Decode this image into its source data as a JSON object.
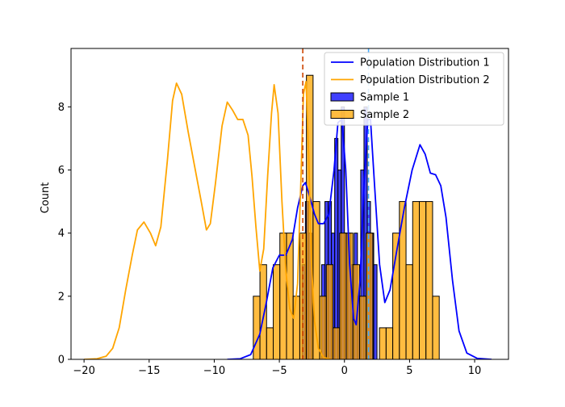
{
  "chart_data": {
    "type": "histogram",
    "title": "",
    "xlabel": "",
    "ylabel": "Count",
    "xlim": [
      -21.0,
      12.6
    ],
    "ylim": [
      0,
      9.85
    ],
    "x_ticks": [
      -20,
      -15,
      -10,
      -5,
      0,
      5,
      10
    ],
    "y_ticks": [
      0,
      2,
      4,
      6,
      8
    ],
    "x_tick_labels": [
      "−20",
      "−15",
      "−10",
      "−5",
      "0",
      "5",
      "10"
    ],
    "y_tick_labels": [
      "0",
      "2",
      "4",
      "6",
      "8"
    ],
    "legend_position": "top-right",
    "legend": [
      {
        "label": "Population Distribution 1",
        "kind": "line",
        "color": "#0000ff"
      },
      {
        "label": "Population Distribution 2",
        "kind": "line",
        "color": "#ffa500"
      },
      {
        "label": "Sample 1",
        "kind": "patch",
        "color": "#0000ff"
      },
      {
        "label": "Sample 2",
        "kind": "patch",
        "color": "#ffa500"
      }
    ],
    "series": [
      {
        "name": "Sample 1",
        "kind": "histogram",
        "color": "#0000ff",
        "bin_width": 0.25,
        "bins": [
          {
            "x": -3.25,
            "count": 3
          },
          {
            "x": -3.0,
            "count": 5
          },
          {
            "x": -2.75,
            "count": 4
          },
          {
            "x": -1.75,
            "count": 3
          },
          {
            "x": -1.5,
            "count": 5
          },
          {
            "x": -1.25,
            "count": 5
          },
          {
            "x": -1.0,
            "count": 4
          },
          {
            "x": -0.75,
            "count": 7
          },
          {
            "x": -0.5,
            "count": 6
          },
          {
            "x": -0.25,
            "count": 8
          },
          {
            "x": 0.0,
            "count": 4
          },
          {
            "x": 0.25,
            "count": 4
          },
          {
            "x": 0.5,
            "count": 3
          },
          {
            "x": 0.75,
            "count": 4
          },
          {
            "x": 1.0,
            "count": 2
          },
          {
            "x": 1.25,
            "count": 6
          },
          {
            "x": 1.5,
            "count": 8
          },
          {
            "x": 1.75,
            "count": 5
          },
          {
            "x": 2.0,
            "count": 4
          },
          {
            "x": 2.25,
            "count": 3
          }
        ]
      },
      {
        "name": "Sample 2",
        "kind": "histogram",
        "color": "#ffa500",
        "bin_width": 0.51,
        "bins": [
          {
            "x": -7.0,
            "count": 2
          },
          {
            "x": -6.49,
            "count": 3
          },
          {
            "x": -5.98,
            "count": 1
          },
          {
            "x": -5.47,
            "count": 3
          },
          {
            "x": -4.96,
            "count": 4
          },
          {
            "x": -4.45,
            "count": 4
          },
          {
            "x": -3.94,
            "count": 2
          },
          {
            "x": -3.43,
            "count": 4
          },
          {
            "x": -2.92,
            "count": 9
          },
          {
            "x": -2.41,
            "count": 5
          },
          {
            "x": -1.9,
            "count": 2
          },
          {
            "x": -1.39,
            "count": 3
          },
          {
            "x": -0.88,
            "count": 1
          },
          {
            "x": -0.37,
            "count": 4
          },
          {
            "x": 0.14,
            "count": 4
          },
          {
            "x": 0.65,
            "count": 3
          },
          {
            "x": 1.16,
            "count": 2
          },
          {
            "x": 1.67,
            "count": 4
          },
          {
            "x": 2.18,
            "count": 0
          },
          {
            "x": 2.69,
            "count": 1
          },
          {
            "x": 3.2,
            "count": 1
          },
          {
            "x": 3.71,
            "count": 4
          },
          {
            "x": 4.22,
            "count": 5
          },
          {
            "x": 4.73,
            "count": 3
          },
          {
            "x": 5.24,
            "count": 5
          },
          {
            "x": 5.75,
            "count": 5
          },
          {
            "x": 6.26,
            "count": 5
          },
          {
            "x": 6.77,
            "count": 2
          }
        ]
      },
      {
        "name": "Population Distribution 1",
        "kind": "line",
        "color": "#0000ff",
        "points": [
          [
            -9.0,
            0.0
          ],
          [
            -8.0,
            0.02
          ],
          [
            -7.2,
            0.15
          ],
          [
            -6.5,
            0.8
          ],
          [
            -6.0,
            1.8
          ],
          [
            -5.5,
            2.9
          ],
          [
            -5.0,
            3.3
          ],
          [
            -4.5,
            3.3
          ],
          [
            -4.0,
            3.8
          ],
          [
            -3.6,
            4.8
          ],
          [
            -3.2,
            5.5
          ],
          [
            -3.0,
            5.6
          ],
          [
            -2.7,
            5.2
          ],
          [
            -2.3,
            4.6
          ],
          [
            -2.0,
            4.3
          ],
          [
            -1.6,
            4.3
          ],
          [
            -1.2,
            4.6
          ],
          [
            -0.8,
            6.0
          ],
          [
            -0.5,
            7.5
          ],
          [
            -0.2,
            7.6
          ],
          [
            0.1,
            6.0
          ],
          [
            0.4,
            3.0
          ],
          [
            0.7,
            1.3
          ],
          [
            0.9,
            1.1
          ],
          [
            1.2,
            2.5
          ],
          [
            1.5,
            5.5
          ],
          [
            1.8,
            7.6
          ],
          [
            2.0,
            7.6
          ],
          [
            2.3,
            5.6
          ],
          [
            2.7,
            3.0
          ],
          [
            3.1,
            1.8
          ],
          [
            3.5,
            2.2
          ],
          [
            4.0,
            3.4
          ],
          [
            4.6,
            4.8
          ],
          [
            5.2,
            6.0
          ],
          [
            5.8,
            6.8
          ],
          [
            6.2,
            6.5
          ],
          [
            6.6,
            5.9
          ],
          [
            7.0,
            5.85
          ],
          [
            7.4,
            5.5
          ],
          [
            7.8,
            4.5
          ],
          [
            8.3,
            2.5
          ],
          [
            8.8,
            0.9
          ],
          [
            9.4,
            0.2
          ],
          [
            10.2,
            0.03
          ],
          [
            11.3,
            0.0
          ]
        ]
      },
      {
        "name": "Population Distribution 2",
        "kind": "line",
        "color": "#ffa500",
        "points": [
          [
            -20.0,
            0.0
          ],
          [
            -19.0,
            0.02
          ],
          [
            -18.3,
            0.1
          ],
          [
            -17.8,
            0.35
          ],
          [
            -17.3,
            1.0
          ],
          [
            -16.8,
            2.2
          ],
          [
            -16.3,
            3.3
          ],
          [
            -15.9,
            4.1
          ],
          [
            -15.4,
            4.35
          ],
          [
            -14.9,
            4.0
          ],
          [
            -14.5,
            3.6
          ],
          [
            -14.1,
            4.2
          ],
          [
            -13.6,
            6.3
          ],
          [
            -13.2,
            8.2
          ],
          [
            -12.9,
            8.75
          ],
          [
            -12.5,
            8.4
          ],
          [
            -12.0,
            7.2
          ],
          [
            -11.5,
            6.1
          ],
          [
            -11.0,
            5.0
          ],
          [
            -10.6,
            4.1
          ],
          [
            -10.3,
            4.3
          ],
          [
            -9.9,
            5.6
          ],
          [
            -9.4,
            7.4
          ],
          [
            -9.0,
            8.15
          ],
          [
            -8.6,
            7.9
          ],
          [
            -8.2,
            7.6
          ],
          [
            -7.8,
            7.6
          ],
          [
            -7.4,
            7.1
          ],
          [
            -7.1,
            5.8
          ],
          [
            -6.8,
            4.2
          ],
          [
            -6.5,
            2.8
          ],
          [
            -6.2,
            3.5
          ],
          [
            -5.9,
            5.8
          ],
          [
            -5.6,
            7.8
          ],
          [
            -5.4,
            8.7
          ],
          [
            -5.1,
            7.8
          ],
          [
            -4.8,
            5.0
          ],
          [
            -4.5,
            2.8
          ],
          [
            -4.2,
            1.6
          ],
          [
            -3.9,
            1.3
          ],
          [
            -3.6,
            2.4
          ],
          [
            -3.35,
            5.6
          ],
          [
            -3.15,
            8.4
          ],
          [
            -2.95,
            8.8
          ],
          [
            -2.75,
            6.5
          ],
          [
            -2.55,
            3.2
          ],
          [
            -2.3,
            1.2
          ],
          [
            -2.0,
            0.35
          ],
          [
            -1.6,
            0.06
          ],
          [
            -1.0,
            0.0
          ]
        ]
      }
    ],
    "reference_lines": [
      {
        "x": -3.2,
        "color": "#cc4400",
        "style": "dashed"
      },
      {
        "x": 1.85,
        "color": "#44aaff",
        "style": "dashed"
      }
    ]
  }
}
